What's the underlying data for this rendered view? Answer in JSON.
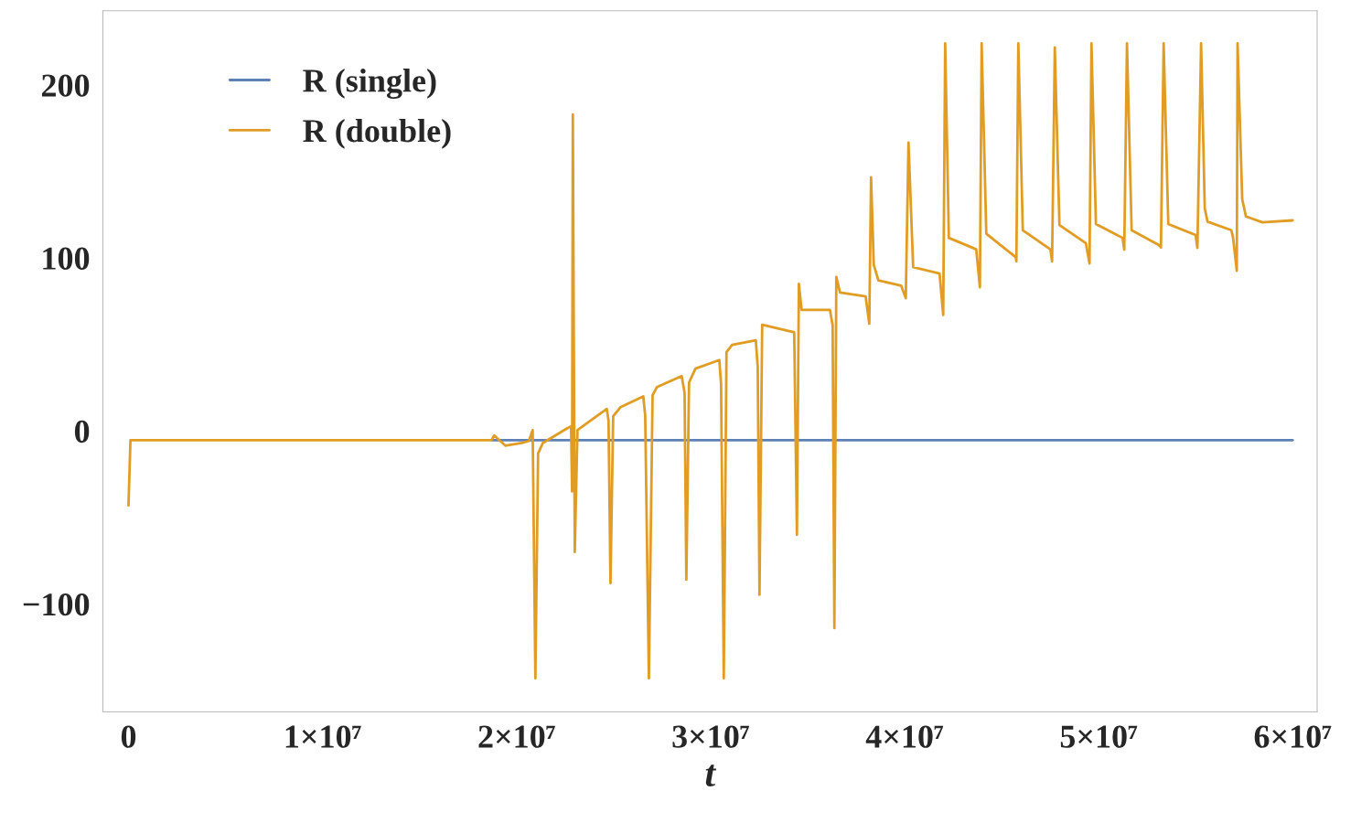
{
  "chart_data": {
    "type": "line",
    "xlabel": "t",
    "xlim": [
      -1320000,
      61260000
    ],
    "ylim": [
      -162.4,
      242.9
    ],
    "xticks": [
      0,
      {
        "value": 10000000,
        "label": "1×10⁷"
      },
      {
        "value": 20000000,
        "label": "2×10⁷"
      },
      {
        "value": 30000000,
        "label": "3×10⁷"
      },
      {
        "value": 40000000,
        "label": "4×10⁷"
      },
      {
        "value": 50000000,
        "label": "5×10⁷"
      },
      {
        "value": 60000000,
        "label": "6×10⁷"
      }
    ],
    "yticks": [
      {
        "value": -100,
        "label": "−100"
      },
      0,
      100,
      200
    ],
    "legend": "top left",
    "grid": false,
    "marker": "none",
    "line_style": "solid",
    "series": [
      {
        "name": "R (single)",
        "color": "#5e81b5",
        "x": [
          18710000,
          60000000
        ],
        "values": [
          -5.3,
          -5.3
        ]
      },
      {
        "name": "R (double)",
        "color": "#e19c24",
        "x": [
          0,
          100000,
          18710000,
          18850000,
          19420000,
          20270000,
          20640000,
          20830000,
          20970000,
          21110000,
          21350000,
          22620000,
          22810000,
          22860000,
          22900000,
          23000000,
          23140000,
          23330000,
          24650000,
          24740000,
          24840000,
          24980000,
          25360000,
          26530000,
          26630000,
          26820000,
          27010000,
          27240000,
          28510000,
          28660000,
          28750000,
          28890000,
          29220000,
          30450000,
          30540000,
          30680000,
          30820000,
          31110000,
          32330000,
          32430000,
          32520000,
          32660000,
          34310000,
          34450000,
          34550000,
          34690000,
          36150000,
          36290000,
          36380000,
          36480000,
          36670000,
          37990000,
          38180000,
          38270000,
          38410000,
          38650000,
          39820000,
          40060000,
          40200000,
          40440000,
          41800000,
          41990000,
          42090000,
          42280000,
          43690000,
          43880000,
          43970000,
          44210000,
          45720000,
          45760000,
          45860000,
          46090000,
          47510000,
          47600000,
          47740000,
          47980000,
          49340000,
          49530000,
          49630000,
          49860000,
          51230000,
          51320000,
          51460000,
          51700000,
          53110000,
          53210000,
          53350000,
          53590000,
          55000000,
          55090000,
          55280000,
          55470000,
          55610000,
          56840000,
          56930000,
          57120000,
          57160000,
          57400000,
          57590000,
          57830000,
          58440000,
          60000000
        ],
        "values": [
          -43,
          -5.3,
          -5.3,
          -2.6,
          -8.5,
          -6.9,
          -5.8,
          0.5,
          -143,
          -13,
          -7,
          1.6,
          2.6,
          -35,
          183,
          -70,
          0.5,
          2,
          12.7,
          6,
          -88,
          8.5,
          13.8,
          20,
          9,
          -143,
          20.6,
          25.4,
          31.7,
          22,
          -86,
          28,
          36,
          41,
          27,
          -143,
          45.5,
          49.7,
          52.4,
          37,
          -94.7,
          61.4,
          57,
          -60,
          85,
          70,
          70,
          61,
          -114,
          89,
          80,
          77.8,
          62,
          146.6,
          96,
          87,
          84,
          76.7,
          166.7,
          94.7,
          91,
          67,
          224,
          111.6,
          105,
          83,
          224,
          114,
          100.5,
          98,
          224,
          116,
          105,
          98,
          221.7,
          119,
          108.5,
          96.8,
          224,
          119.6,
          111.6,
          104.8,
          224,
          116,
          107.4,
          106,
          224,
          119.6,
          113.2,
          105.8,
          224,
          128.6,
          121,
          116,
          111.6,
          92.6,
          224,
          133.9,
          124,
          123,
          120.6,
          121.7
        ]
      }
    ]
  }
}
